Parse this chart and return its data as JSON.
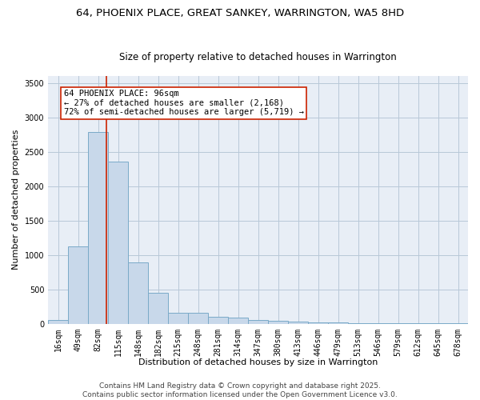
{
  "title_line1": "64, PHOENIX PLACE, GREAT SANKEY, WARRINGTON, WA5 8HD",
  "title_line2": "Size of property relative to detached houses in Warrington",
  "xlabel": "Distribution of detached houses by size in Warrington",
  "ylabel": "Number of detached properties",
  "bar_labels": [
    "16sqm",
    "49sqm",
    "82sqm",
    "115sqm",
    "148sqm",
    "182sqm",
    "215sqm",
    "248sqm",
    "281sqm",
    "314sqm",
    "347sqm",
    "380sqm",
    "413sqm",
    "446sqm",
    "479sqm",
    "513sqm",
    "546sqm",
    "579sqm",
    "612sqm",
    "645sqm",
    "678sqm"
  ],
  "bar_values": [
    50,
    1120,
    2780,
    2350,
    890,
    450,
    160,
    160,
    95,
    90,
    55,
    40,
    25,
    20,
    15,
    12,
    10,
    8,
    6,
    4,
    2
  ],
  "bar_color": "#c8d8ea",
  "bar_edge_color": "#7aaac8",
  "bar_edge_width": 0.7,
  "grid_color": "#b8c8d8",
  "background_color": "#e8eef6",
  "vline_color": "#cc2200",
  "annotation_text": "64 PHOENIX PLACE: 96sqm\n← 27% of detached houses are smaller (2,168)\n72% of semi-detached houses are larger (5,719) →",
  "annotation_box_color": "#ffffff",
  "annotation_border_color": "#cc2200",
  "ylim": [
    0,
    3600
  ],
  "yticks": [
    0,
    500,
    1000,
    1500,
    2000,
    2500,
    3000,
    3500
  ],
  "footer_line1": "Contains HM Land Registry data © Crown copyright and database right 2025.",
  "footer_line2": "Contains public sector information licensed under the Open Government Licence v3.0.",
  "title_fontsize": 9.5,
  "subtitle_fontsize": 8.5,
  "axis_label_fontsize": 8,
  "tick_fontsize": 7,
  "annotation_fontsize": 7.5,
  "footer_fontsize": 6.5
}
